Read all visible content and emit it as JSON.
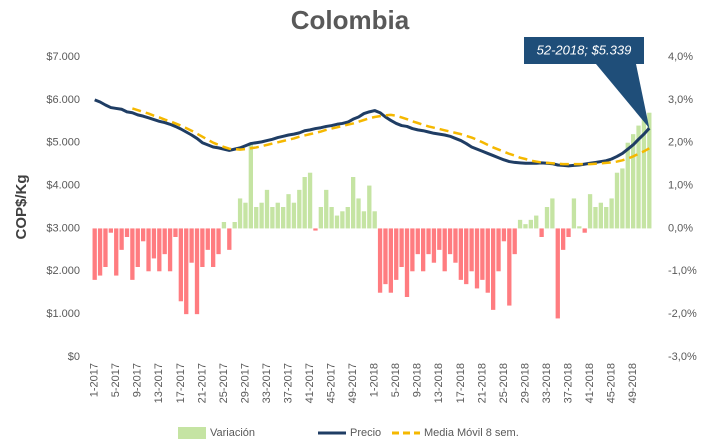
{
  "chart_data": {
    "type": "bar-line",
    "title": "Colombia",
    "y_label": "COP$/Kg",
    "categories": [
      "1-2017",
      null,
      null,
      null,
      "5-2017",
      null,
      null,
      null,
      "9-2017",
      null,
      null,
      null,
      "13-2017",
      null,
      null,
      null,
      "17-2017",
      null,
      null,
      null,
      "21-2017",
      null,
      null,
      null,
      "25-2017",
      null,
      null,
      null,
      "29-2017",
      null,
      null,
      null,
      "33-2017",
      null,
      null,
      null,
      "37-2017",
      null,
      null,
      null,
      "41-2017",
      null,
      null,
      null,
      "45-2017",
      null,
      null,
      null,
      "49-2017",
      null,
      null,
      null,
      "1-2018",
      null,
      null,
      null,
      "5-2018",
      null,
      null,
      null,
      "9-2018",
      null,
      null,
      null,
      "13-2018",
      null,
      null,
      null,
      "17-2018",
      null,
      null,
      null,
      "21-2018",
      null,
      null,
      null,
      "25-2018",
      null,
      null,
      null,
      "29-2018",
      null,
      null,
      null,
      "33-2018",
      null,
      null,
      null,
      "37-2018",
      null,
      null,
      null,
      "41-2018",
      null,
      null,
      null,
      "45-2018",
      null,
      null,
      null,
      "49-2018",
      null,
      null,
      null
    ],
    "series": [
      {
        "name": "Variación",
        "type": "bar",
        "axis": "y2",
        "color": "#c5e4a3",
        "negative_color": "#ff7c80",
        "values": [
          -1.2,
          -1.1,
          -0.9,
          -0.1,
          -1.1,
          -0.5,
          -0.2,
          -1.2,
          -0.9,
          -0.3,
          -1.0,
          -0.7,
          -1.0,
          -0.6,
          -1.0,
          -0.2,
          -1.7,
          -2.0,
          -0.8,
          -2.0,
          -0.9,
          -0.5,
          -0.9,
          -0.6,
          0.15,
          -0.5,
          0.15,
          0.7,
          0.6,
          2.0,
          0.5,
          0.6,
          0.9,
          0.5,
          0.6,
          0.5,
          0.8,
          0.6,
          0.9,
          1.2,
          1.3,
          -0.05,
          0.5,
          0.9,
          0.5,
          0.3,
          0.4,
          0.5,
          1.2,
          0.7,
          0.4,
          1.0,
          0.4,
          -1.5,
          -1.3,
          -1.5,
          -1.2,
          -0.9,
          -1.6,
          -1.0,
          -0.6,
          -1.0,
          -0.6,
          -0.8,
          -0.5,
          -1.0,
          -0.6,
          -0.8,
          -1.2,
          -1.3,
          -1.0,
          -1.4,
          -1.2,
          -1.5,
          -1.9,
          -1.0,
          -0.3,
          -1.8,
          -0.6,
          0.2,
          0.1,
          0.2,
          0.3,
          -0.2,
          0.5,
          0.7,
          -2.1,
          -0.5,
          -0.2,
          0.7,
          0.05,
          -0.1,
          0.8,
          0.5,
          0.6,
          0.5,
          0.7,
          1.3,
          1.4,
          2.0,
          2.2,
          2.4,
          2.6,
          2.7
        ]
      },
      {
        "name": "Precio",
        "type": "line",
        "color": "#1f3d64",
        "values": [
          6000,
          5950,
          5880,
          5820,
          5800,
          5780,
          5720,
          5700,
          5650,
          5620,
          5580,
          5540,
          5500,
          5470,
          5430,
          5380,
          5320,
          5250,
          5180,
          5100,
          5000,
          4950,
          4900,
          4880,
          4850,
          4820,
          4850,
          4880,
          4930,
          4980,
          5000,
          5020,
          5050,
          5080,
          5120,
          5150,
          5180,
          5200,
          5230,
          5280,
          5300,
          5330,
          5350,
          5380,
          5400,
          5430,
          5450,
          5480,
          5550,
          5600,
          5680,
          5720,
          5750,
          5700,
          5600,
          5520,
          5450,
          5400,
          5380,
          5330,
          5300,
          5280,
          5250,
          5220,
          5200,
          5180,
          5150,
          5100,
          5050,
          4980,
          4900,
          4850,
          4800,
          4750,
          4700,
          4650,
          4600,
          4560,
          4540,
          4530,
          4520,
          4520,
          4520,
          4530,
          4520,
          4510,
          4480,
          4470,
          4460,
          4470,
          4480,
          4500,
          4520,
          4540,
          4560,
          4580,
          4620,
          4680,
          4750,
          4850,
          4950,
          5080,
          5200,
          5339
        ]
      },
      {
        "name": "Media Móvil 8 sem.",
        "type": "line",
        "line_style": "dashed",
        "color": "#f5b800",
        "values": [
          null,
          null,
          null,
          null,
          null,
          null,
          null,
          5800,
          5760,
          5720,
          5680,
          5630,
          5590,
          5540,
          5500,
          5450,
          5400,
          5340,
          5280,
          5210,
          5140,
          5070,
          5000,
          4950,
          4900,
          4860,
          4850,
          4840,
          4850,
          4870,
          4890,
          4920,
          4950,
          4980,
          5010,
          5040,
          5070,
          5100,
          5140,
          5170,
          5200,
          5230,
          5260,
          5300,
          5330,
          5360,
          5390,
          5420,
          5450,
          5490,
          5530,
          5570,
          5600,
          5620,
          5640,
          5650,
          5630,
          5590,
          5550,
          5500,
          5460,
          5420,
          5380,
          5350,
          5320,
          5290,
          5260,
          5230,
          5200,
          5160,
          5120,
          5070,
          5010,
          4950,
          4890,
          4840,
          4790,
          4740,
          4700,
          4650,
          4620,
          4580,
          4560,
          4540,
          4530,
          4520,
          4510,
          4500,
          4500,
          4500,
          4500,
          4500,
          4500,
          4510,
          4520,
          4530,
          4540,
          4560,
          4590,
          4630,
          4680,
          4740,
          4800,
          4870
        ]
      }
    ],
    "ylim": [
      0,
      7000
    ],
    "yticks": [
      {
        "value": 0,
        "label": "$0"
      },
      {
        "value": 1000,
        "label": "$1.000"
      },
      {
        "value": 2000,
        "label": "$2.000"
      },
      {
        "value": 3000,
        "label": "$3.000"
      },
      {
        "value": 4000,
        "label": "$4.000"
      },
      {
        "value": 5000,
        "label": "$5.000"
      },
      {
        "value": 6000,
        "label": "$6.000"
      },
      {
        "value": 7000,
        "label": "$7.000"
      }
    ],
    "y2lim": [
      -3,
      4
    ],
    "y2ticks": [
      {
        "value": -3,
        "label": "-3,0%"
      },
      {
        "value": -2,
        "label": "-2,0%"
      },
      {
        "value": -1,
        "label": "-1,0%"
      },
      {
        "value": 0,
        "label": "0,0%"
      },
      {
        "value": 1,
        "label": "1,0%"
      },
      {
        "value": 2,
        "label": "2,0%"
      },
      {
        "value": 3,
        "label": "3,0%"
      },
      {
        "value": 4,
        "label": "4,0%"
      }
    ],
    "annotation": "52-2018; $5.339",
    "legend": "bottom"
  }
}
